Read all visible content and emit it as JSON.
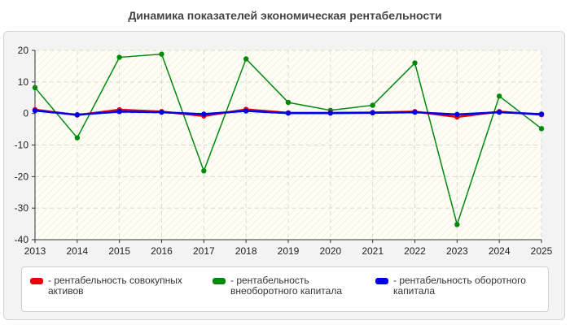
{
  "title": "Динамика показателей экономическая рентабельности",
  "chart_data": {
    "type": "line",
    "title": "Динамика показателей экономическая рентабельности",
    "x": [
      "2013",
      "2014",
      "2015",
      "2016",
      "2017",
      "2018",
      "2019",
      "2020",
      "2021",
      "2022",
      "2023",
      "2024",
      "2025"
    ],
    "ylim": [
      -40,
      20
    ],
    "yticks": [
      20,
      10,
      0,
      -10,
      -20,
      -30,
      -40
    ],
    "grid": true,
    "legend": "bottom",
    "series": [
      {
        "name": "- рентабельность совокупных активов",
        "color": "#e8000b",
        "values": [
          1.2,
          -0.5,
          1.2,
          0.6,
          -0.8,
          1.3,
          0.2,
          0.2,
          0.3,
          0.6,
          -1.1,
          0.6,
          -0.4
        ]
      },
      {
        "name": "- рентабельность внеоборотного капитала",
        "color": "#00890a",
        "values": [
          8.2,
          -7.7,
          17.8,
          18.8,
          -18.2,
          17.3,
          3.5,
          1.0,
          2.6,
          16.0,
          -35.2,
          5.5,
          -4.8
        ]
      },
      {
        "name": "- рентабельность оборотного капитала",
        "color": "#0000e8",
        "values": [
          0.9,
          -0.4,
          0.6,
          0.4,
          -0.2,
          0.8,
          0.1,
          0.1,
          0.2,
          0.4,
          -0.3,
          0.4,
          -0.2
        ]
      }
    ]
  }
}
